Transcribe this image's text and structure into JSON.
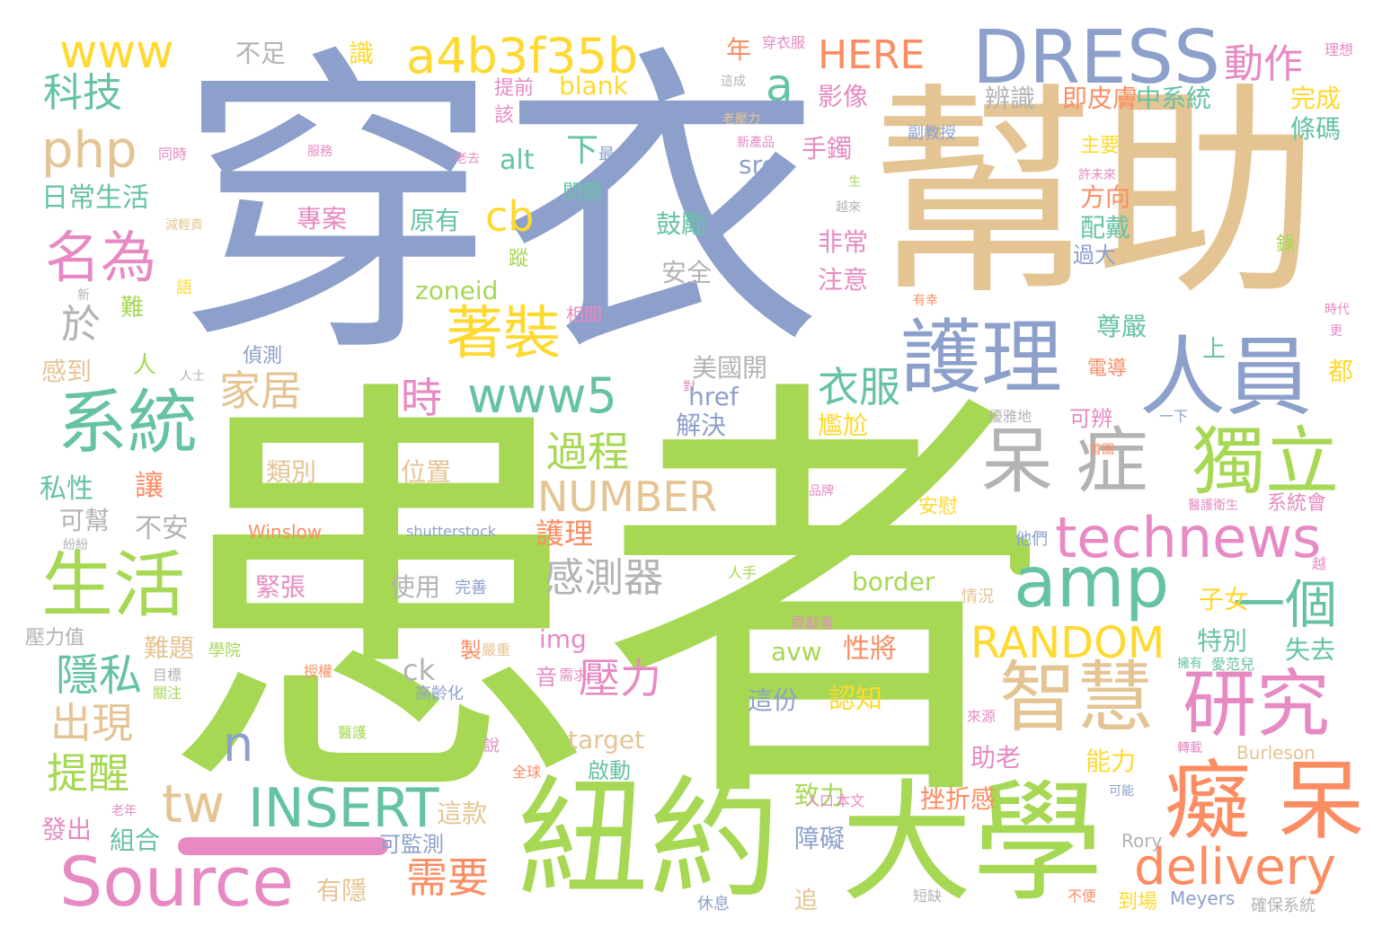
{
  "palette": {
    "blue": "#8da0cb",
    "green": "#a6d854",
    "tan": "#e5c494",
    "pink": "#e78ac3",
    "teal": "#66c2a5",
    "orange": "#fc8d62",
    "yellow": "#ffd92f",
    "gray": "#b3b3b3"
  },
  "words": [
    {
      "text": "患者",
      "color": "#a6d854"
    },
    {
      "text": "穿衣",
      "color": "#8da0cb"
    },
    {
      "text": "幫助",
      "color": "#e5c494"
    },
    {
      "text": "紐約",
      "color": "#a6d854"
    },
    {
      "text": "大學",
      "color": "#a6d854"
    },
    {
      "text": "DRESS",
      "color": "#8da0cb"
    },
    {
      "text": "護理",
      "color": "#8da0cb"
    },
    {
      "text": "人員",
      "color": "#8da0cb"
    },
    {
      "text": "呆 症",
      "color": "#b3b3b3"
    },
    {
      "text": "獨立",
      "color": "#a6d854"
    },
    {
      "text": "智慧",
      "color": "#e5c494"
    },
    {
      "text": "癡 呆",
      "color": "#fc8d62"
    },
    {
      "text": "研究",
      "color": "#e78ac3"
    },
    {
      "text": "系統",
      "color": "#66c2a5"
    },
    {
      "text": "生活",
      "color": "#a6d854"
    },
    {
      "text": "Source",
      "color": "#e78ac3"
    },
    {
      "text": "amp",
      "color": "#66c2a5"
    },
    {
      "text": "technews",
      "color": "#e78ac3"
    },
    {
      "text": "delivery",
      "color": "#fc8d62"
    },
    {
      "text": "a4b3f35b",
      "color": "#ffd92f"
    },
    {
      "text": "www5",
      "color": "#66c2a5"
    },
    {
      "text": "www",
      "color": "#ffd92f"
    },
    {
      "text": "名為",
      "color": "#e78ac3"
    },
    {
      "text": "著裝",
      "color": "#ffd92f"
    },
    {
      "text": "php",
      "color": "#e5c494"
    },
    {
      "text": "INSERT",
      "color": "#66c2a5"
    },
    {
      "text": "tw",
      "color": "#e5c494"
    },
    {
      "text": "NUMBER",
      "color": "#e5c494"
    },
    {
      "text": "RANDOM",
      "color": "#ffd92f"
    },
    {
      "text": "一個",
      "color": "#66c2a5"
    },
    {
      "text": "感測器",
      "color": "#b3b3b3"
    },
    {
      "text": "科技",
      "color": "#66c2a5"
    },
    {
      "text": "動作",
      "color": "#e78ac3"
    },
    {
      "text": "HERE",
      "color": "#fc8d62"
    },
    {
      "text": "cb",
      "color": "#ffd92f"
    },
    {
      "text": "a",
      "color": "#66c2a5"
    },
    {
      "text": "家居",
      "color": "#e5c494"
    },
    {
      "text": "衣服",
      "color": "#66c2a5"
    },
    {
      "text": "過程",
      "color": "#a6d854"
    },
    {
      "text": "時",
      "color": "#e78ac3"
    },
    {
      "text": "隱私",
      "color": "#66c2a5"
    },
    {
      "text": "出現",
      "color": "#e5c494"
    },
    {
      "text": "提醒",
      "color": "#a6d854"
    },
    {
      "text": "壓力",
      "color": "#e78ac3"
    },
    {
      "text": "需要",
      "color": "#fc8d62"
    },
    {
      "text": "n",
      "color": "#8da0cb"
    },
    {
      "text": "於",
      "color": "#b3b3b3"
    },
    {
      "text": "日常生活",
      "color": "#66c2a5"
    },
    {
      "text": "不足",
      "color": "#b3b3b3"
    },
    {
      "text": "識",
      "color": "#ffd92f"
    },
    {
      "text": "年",
      "color": "#fc8d62"
    },
    {
      "text": "blank",
      "color": "#ffd92f"
    },
    {
      "text": "影像",
      "color": "#e78ac3"
    },
    {
      "text": "辨識",
      "color": "#b3b3b3"
    },
    {
      "text": "即皮膚",
      "color": "#fc8d62"
    },
    {
      "text": "中系統",
      "color": "#66c2a5"
    },
    {
      "text": "完成",
      "color": "#ffd92f"
    },
    {
      "text": "條碼",
      "color": "#66c2a5"
    },
    {
      "text": "穿衣服",
      "color": "#e78ac3"
    },
    {
      "text": "理想",
      "color": "#e78ac3"
    },
    {
      "text": "提前",
      "color": "#e78ac3"
    },
    {
      "text": "該",
      "color": "#e78ac3"
    },
    {
      "text": "副教授",
      "color": "#8da0cb"
    },
    {
      "text": "下",
      "color": "#66c2a5"
    },
    {
      "text": "最",
      "color": "#8da0cb"
    },
    {
      "text": "src",
      "color": "#8da0cb"
    },
    {
      "text": "手鐲",
      "color": "#e78ac3"
    },
    {
      "text": "alt",
      "color": "#66c2a5"
    },
    {
      "text": "問題",
      "color": "#66c2a5"
    },
    {
      "text": "主要",
      "color": "#ffd92f"
    },
    {
      "text": "方向",
      "color": "#fc8d62"
    },
    {
      "text": "配戴",
      "color": "#66c2a5"
    },
    {
      "text": "專案",
      "color": "#e78ac3"
    },
    {
      "text": "原有",
      "color": "#66c2a5"
    },
    {
      "text": "鼓勵",
      "color": "#66c2a5"
    },
    {
      "text": "非常",
      "color": "#e78ac3"
    },
    {
      "text": "注意",
      "color": "#e78ac3"
    },
    {
      "text": "過大",
      "color": "#8da0cb"
    },
    {
      "text": "錄",
      "color": "#a6d854"
    },
    {
      "text": "蹤",
      "color": "#a6d854"
    },
    {
      "text": "安全",
      "color": "#b3b3b3"
    },
    {
      "text": "zoneid",
      "color": "#a6d854"
    },
    {
      "text": "尊嚴",
      "color": "#66c2a5"
    },
    {
      "text": "難",
      "color": "#a6d854"
    },
    {
      "text": "人",
      "color": "#a6d854"
    },
    {
      "text": "感到",
      "color": "#e5c494"
    },
    {
      "text": "偵測",
      "color": "#8da0cb"
    },
    {
      "text": "相關",
      "color": "#e78ac3"
    },
    {
      "text": "美國開",
      "color": "#b3b3b3"
    },
    {
      "text": "href",
      "color": "#8da0cb"
    },
    {
      "text": "上",
      "color": "#66c2a5"
    },
    {
      "text": "都",
      "color": "#ffd92f"
    },
    {
      "text": "電導",
      "color": "#fc8d62"
    },
    {
      "text": "解決",
      "color": "#8da0cb"
    },
    {
      "text": "可辨",
      "color": "#e78ac3"
    },
    {
      "text": "尷尬",
      "color": "#ffd92f"
    },
    {
      "text": "讓",
      "color": "#fc8d62"
    },
    {
      "text": "類別",
      "color": "#e5c494"
    },
    {
      "text": "位置",
      "color": "#e5c494"
    },
    {
      "text": "私性",
      "color": "#66c2a5"
    },
    {
      "text": "可幫",
      "color": "#b3b3b3"
    },
    {
      "text": "不安",
      "color": "#b3b3b3"
    },
    {
      "text": "護理",
      "color": "#fc8d62"
    },
    {
      "text": "子女",
      "color": "#ffd92f"
    },
    {
      "text": "系統會",
      "color": "#e78ac3"
    },
    {
      "text": "安慰",
      "color": "#ffd92f"
    },
    {
      "text": "Winslow",
      "color": "#fc8d62"
    },
    {
      "text": "shutterstock",
      "color": "#8da0cb"
    },
    {
      "text": "他們",
      "color": "#8da0cb"
    },
    {
      "text": "緊張",
      "color": "#e78ac3"
    },
    {
      "text": "使用",
      "color": "#b3b3b3"
    },
    {
      "text": "完善",
      "color": "#8da0cb"
    },
    {
      "text": "border",
      "color": "#a6d854"
    },
    {
      "text": "情況",
      "color": "#e5c494"
    },
    {
      "text": "特別",
      "color": "#66c2a5"
    },
    {
      "text": "失去",
      "color": "#66c2a5"
    },
    {
      "text": "img",
      "color": "#e78ac3"
    },
    {
      "text": "avw",
      "color": "#a6d854"
    },
    {
      "text": "性將",
      "color": "#fc8d62"
    },
    {
      "text": "ck",
      "color": "#b3b3b3"
    },
    {
      "text": "難題",
      "color": "#e5c494"
    },
    {
      "text": "學院",
      "color": "#a6d854"
    },
    {
      "text": "壓力值",
      "color": "#b3b3b3"
    },
    {
      "text": "製",
      "color": "#fc8d62"
    },
    {
      "text": "嚴重",
      "color": "#e5c494"
    },
    {
      "text": "音",
      "color": "#e78ac3"
    },
    {
      "text": "需求",
      "color": "#e78ac3"
    },
    {
      "text": "高齡化",
      "color": "#8da0cb"
    },
    {
      "text": "這份",
      "color": "#8da0cb"
    },
    {
      "text": "認知",
      "color": "#ffd92f"
    },
    {
      "text": "target",
      "color": "#e5c494"
    },
    {
      "text": "助老",
      "color": "#e78ac3"
    },
    {
      "text": "能力",
      "color": "#ffd92f"
    },
    {
      "text": "啟動",
      "color": "#66c2a5"
    },
    {
      "text": "致力",
      "color": "#a6d854"
    },
    {
      "text": "挫折感",
      "color": "#fc8d62"
    },
    {
      "text": "這款",
      "color": "#e5c494"
    },
    {
      "text": "發出",
      "color": "#e78ac3"
    },
    {
      "text": "組合",
      "color": "#66c2a5"
    },
    {
      "text": "可監測",
      "color": "#8da0cb"
    },
    {
      "text": "障礙",
      "color": "#8da0cb"
    },
    {
      "text": "有隱",
      "color": "#e5c494"
    },
    {
      "text": "追",
      "color": "#e5c494"
    },
    {
      "text": "到場",
      "color": "#ffd92f"
    },
    {
      "text": "Meyers",
      "color": "#8da0cb"
    },
    {
      "text": "Rory",
      "color": "#b3b3b3"
    },
    {
      "text": "Burleson",
      "color": "#e5c494"
    },
    {
      "text": "確保系統",
      "color": "#b3b3b3"
    },
    {
      "text": "休息",
      "color": "#8da0cb"
    },
    {
      "text": "短缺",
      "color": "#b3b3b3"
    },
    {
      "text": "不便",
      "color": "#fc8d62"
    },
    {
      "text": "人口",
      "color": "#e78ac3"
    },
    {
      "text": "本文",
      "color": "#e78ac3"
    },
    {
      "text": "可能",
      "color": "#8da0cb"
    },
    {
      "text": "全球",
      "color": "#fc8d62"
    },
    {
      "text": "說",
      "color": "#e78ac3"
    },
    {
      "text": "老年",
      "color": "#e78ac3"
    },
    {
      "text": "授權",
      "color": "#fc8d62"
    },
    {
      "text": "目標",
      "color": "#b3b3b3"
    },
    {
      "text": "關注",
      "color": "#a6d854"
    },
    {
      "text": "醫護",
      "color": "#a6d854"
    },
    {
      "text": "貢獻者",
      "color": "#e78ac3"
    },
    {
      "text": "人手",
      "color": "#a6d854"
    },
    {
      "text": "越",
      "color": "#e78ac3"
    },
    {
      "text": "擁有",
      "color": "#66c2a5"
    },
    {
      "text": "愛范兒",
      "color": "#66c2a5"
    },
    {
      "text": "來源",
      "color": "#e78ac3"
    },
    {
      "text": "轉載",
      "color": "#e78ac3"
    },
    {
      "text": "醫護衛生",
      "color": "#e78ac3"
    },
    {
      "text": "品牌",
      "color": "#e78ac3"
    },
    {
      "text": "首圖",
      "color": "#fc8d62"
    },
    {
      "text": "優雅地",
      "color": "#b3b3b3"
    },
    {
      "text": "一下",
      "color": "#8da0cb"
    },
    {
      "text": "對",
      "color": "#e78ac3"
    },
    {
      "text": "人士",
      "color": "#b3b3b3"
    },
    {
      "text": "紛紛",
      "color": "#b3b3b3"
    },
    {
      "text": "新",
      "color": "#b3b3b3"
    },
    {
      "text": "語",
      "color": "#ffd92f"
    },
    {
      "text": "減輕責",
      "color": "#e5c494"
    },
    {
      "text": "同時",
      "color": "#e78ac3"
    },
    {
      "text": "老壓力",
      "color": "#e5c494"
    },
    {
      "text": "服務",
      "color": "#e78ac3"
    },
    {
      "text": "老去",
      "color": "#e78ac3"
    },
    {
      "text": "新產品",
      "color": "#e78ac3"
    },
    {
      "text": "這成",
      "color": "#b3b3b3"
    },
    {
      "text": "生",
      "color": "#a6d854"
    },
    {
      "text": "越來",
      "color": "#b3b3b3"
    },
    {
      "text": "許未來",
      "color": "#e78ac3"
    },
    {
      "text": "有幸",
      "color": "#fc8d62"
    },
    {
      "text": "時代",
      "color": "#e78ac3"
    },
    {
      "text": "更",
      "color": "#e78ac3"
    }
  ]
}
